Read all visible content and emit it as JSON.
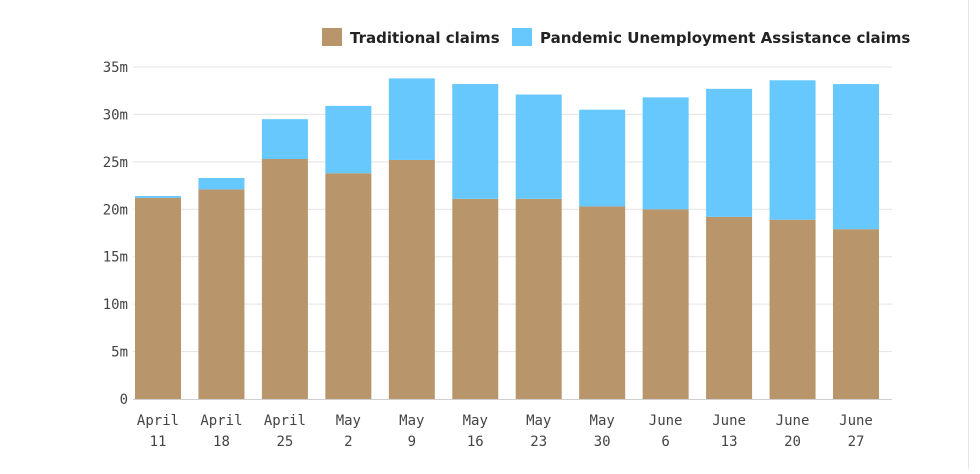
{
  "chart_data": {
    "type": "bar",
    "stacked": true,
    "categories": [
      [
        "April",
        "11"
      ],
      [
        "April",
        "18"
      ],
      [
        "April",
        "25"
      ],
      [
        "May",
        "2"
      ],
      [
        "May",
        "9"
      ],
      [
        "May",
        "16"
      ],
      [
        "May",
        "23"
      ],
      [
        "May",
        "30"
      ],
      [
        "June",
        "6"
      ],
      [
        "June",
        "13"
      ],
      [
        "June",
        "20"
      ],
      [
        "June",
        "27"
      ]
    ],
    "series": [
      {
        "name": "Traditional claims",
        "color": "#b8956a",
        "values": [
          21.2,
          22.1,
          25.3,
          23.8,
          25.2,
          21.1,
          21.1,
          20.3,
          20.0,
          19.2,
          18.9,
          17.9
        ]
      },
      {
        "name": "Pandemic Unemployment Assistance claims",
        "color": "#66c8fd",
        "values": [
          0.2,
          1.2,
          4.2,
          7.1,
          8.6,
          12.1,
          11.0,
          10.2,
          11.8,
          13.5,
          14.7,
          15.3
        ]
      }
    ],
    "ylim": [
      0,
      35
    ],
    "yticks": [
      0,
      5,
      10,
      15,
      20,
      25,
      30,
      35
    ],
    "ytick_labels": [
      "0",
      "5m",
      "10m",
      "15m",
      "20m",
      "25m",
      "30m",
      "35m"
    ],
    "grid": true,
    "legend_position": "top-right",
    "title": "",
    "xlabel": "",
    "ylabel": ""
  }
}
